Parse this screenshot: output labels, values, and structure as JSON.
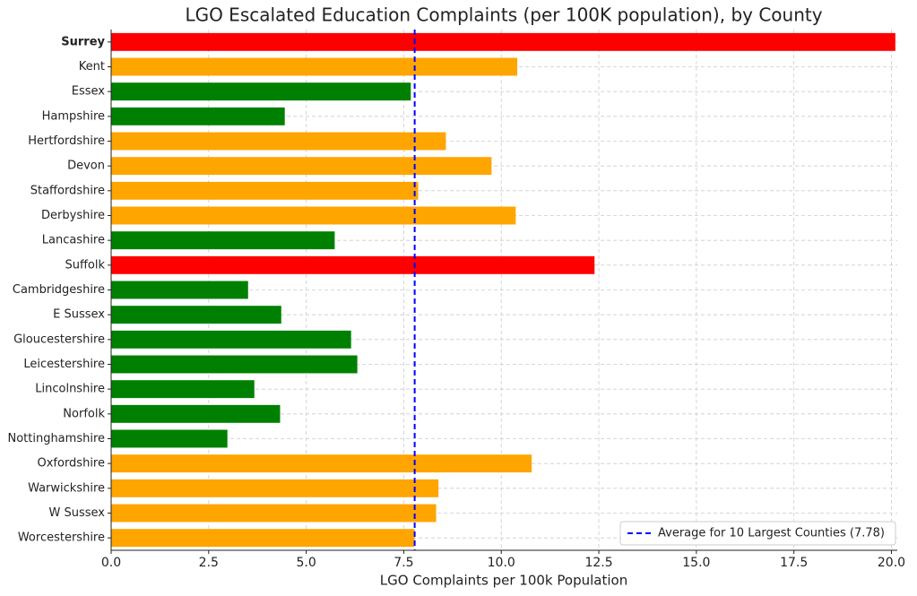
{
  "chart_data": {
    "type": "barh",
    "title": "LGO Escalated Education Complaints (per 100K population), by County",
    "x_label": "LGO Complaints per 100k Population",
    "categories": [
      "Surrey",
      "Kent",
      "Essex",
      "Hampshire",
      "Hertfordshire",
      "Devon",
      "Staffordshire",
      "Derbyshire",
      "Lancashire",
      "Suffolk",
      "Cambridgeshire",
      "E Sussex",
      "Gloucestershire",
      "Leicestershire",
      "Lincolnshire",
      "Norfolk",
      "Nottinghamshire",
      "Oxfordshire",
      "Warwickshire",
      "W Sussex",
      "Worcestershire"
    ],
    "values": [
      20.1,
      10.41,
      7.68,
      4.45,
      8.58,
      9.75,
      7.87,
      10.37,
      5.73,
      12.39,
      3.51,
      4.36,
      6.15,
      6.31,
      3.67,
      4.33,
      2.98,
      10.78,
      8.39,
      8.33,
      7.78
    ],
    "colors": [
      "#ff0000",
      "#ffa500",
      "#008000",
      "#008000",
      "#ffa500",
      "#ffa500",
      "#ffa500",
      "#ffa500",
      "#008000",
      "#ff0000",
      "#008000",
      "#008000",
      "#008000",
      "#008000",
      "#008000",
      "#008000",
      "#008000",
      "#ffa500",
      "#ffa500",
      "#ffa500",
      "#ffa500"
    ],
    "xlim": [
      0,
      20.15
    ],
    "xticks": [
      {
        "value": 0,
        "label": "0.0"
      },
      2.5,
      {
        "value": 5,
        "label": "5.0"
      },
      7.5,
      {
        "value": 10,
        "label": "10.0"
      },
      12.5,
      {
        "value": 15,
        "label": "15.0"
      },
      17.5,
      {
        "value": 20,
        "label": "20.0"
      }
    ],
    "reference_line": {
      "value": 7.78,
      "label": "Average for 10 Largest Counties (7.78)",
      "color": "#0000ff"
    },
    "grid": true,
    "legend": "lower right"
  }
}
